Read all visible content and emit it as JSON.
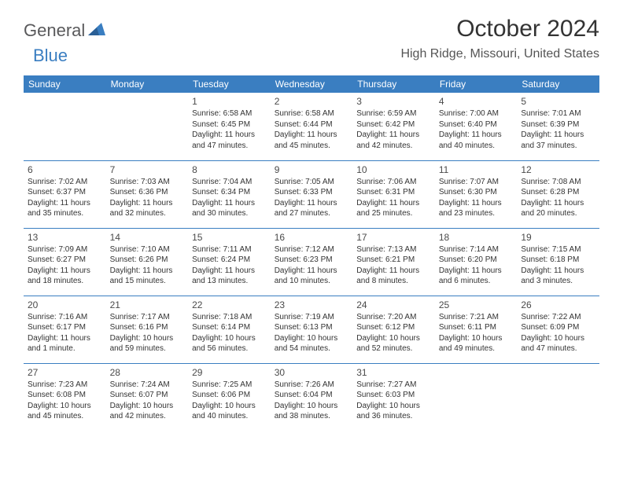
{
  "logo": {
    "text_general": "General",
    "text_blue": "Blue"
  },
  "title": "October 2024",
  "location": "High Ridge, Missouri, United States",
  "colors": {
    "header_bg": "#3a7ec1",
    "header_text": "#ffffff",
    "row_divider": "#3a7ec1",
    "body_text": "#333333",
    "logo_gray": "#59595b",
    "logo_blue": "#3a7ec1",
    "page_bg": "#ffffff"
  },
  "day_names": [
    "Sunday",
    "Monday",
    "Tuesday",
    "Wednesday",
    "Thursday",
    "Friday",
    "Saturday"
  ],
  "weeks": [
    [
      null,
      null,
      {
        "d": "1",
        "sr": "Sunrise: 6:58 AM",
        "ss": "Sunset: 6:45 PM",
        "dl1": "Daylight: 11 hours",
        "dl2": "and 47 minutes."
      },
      {
        "d": "2",
        "sr": "Sunrise: 6:58 AM",
        "ss": "Sunset: 6:44 PM",
        "dl1": "Daylight: 11 hours",
        "dl2": "and 45 minutes."
      },
      {
        "d": "3",
        "sr": "Sunrise: 6:59 AM",
        "ss": "Sunset: 6:42 PM",
        "dl1": "Daylight: 11 hours",
        "dl2": "and 42 minutes."
      },
      {
        "d": "4",
        "sr": "Sunrise: 7:00 AM",
        "ss": "Sunset: 6:40 PM",
        "dl1": "Daylight: 11 hours",
        "dl2": "and 40 minutes."
      },
      {
        "d": "5",
        "sr": "Sunrise: 7:01 AM",
        "ss": "Sunset: 6:39 PM",
        "dl1": "Daylight: 11 hours",
        "dl2": "and 37 minutes."
      }
    ],
    [
      {
        "d": "6",
        "sr": "Sunrise: 7:02 AM",
        "ss": "Sunset: 6:37 PM",
        "dl1": "Daylight: 11 hours",
        "dl2": "and 35 minutes."
      },
      {
        "d": "7",
        "sr": "Sunrise: 7:03 AM",
        "ss": "Sunset: 6:36 PM",
        "dl1": "Daylight: 11 hours",
        "dl2": "and 32 minutes."
      },
      {
        "d": "8",
        "sr": "Sunrise: 7:04 AM",
        "ss": "Sunset: 6:34 PM",
        "dl1": "Daylight: 11 hours",
        "dl2": "and 30 minutes."
      },
      {
        "d": "9",
        "sr": "Sunrise: 7:05 AM",
        "ss": "Sunset: 6:33 PM",
        "dl1": "Daylight: 11 hours",
        "dl2": "and 27 minutes."
      },
      {
        "d": "10",
        "sr": "Sunrise: 7:06 AM",
        "ss": "Sunset: 6:31 PM",
        "dl1": "Daylight: 11 hours",
        "dl2": "and 25 minutes."
      },
      {
        "d": "11",
        "sr": "Sunrise: 7:07 AM",
        "ss": "Sunset: 6:30 PM",
        "dl1": "Daylight: 11 hours",
        "dl2": "and 23 minutes."
      },
      {
        "d": "12",
        "sr": "Sunrise: 7:08 AM",
        "ss": "Sunset: 6:28 PM",
        "dl1": "Daylight: 11 hours",
        "dl2": "and 20 minutes."
      }
    ],
    [
      {
        "d": "13",
        "sr": "Sunrise: 7:09 AM",
        "ss": "Sunset: 6:27 PM",
        "dl1": "Daylight: 11 hours",
        "dl2": "and 18 minutes."
      },
      {
        "d": "14",
        "sr": "Sunrise: 7:10 AM",
        "ss": "Sunset: 6:26 PM",
        "dl1": "Daylight: 11 hours",
        "dl2": "and 15 minutes."
      },
      {
        "d": "15",
        "sr": "Sunrise: 7:11 AM",
        "ss": "Sunset: 6:24 PM",
        "dl1": "Daylight: 11 hours",
        "dl2": "and 13 minutes."
      },
      {
        "d": "16",
        "sr": "Sunrise: 7:12 AM",
        "ss": "Sunset: 6:23 PM",
        "dl1": "Daylight: 11 hours",
        "dl2": "and 10 minutes."
      },
      {
        "d": "17",
        "sr": "Sunrise: 7:13 AM",
        "ss": "Sunset: 6:21 PM",
        "dl1": "Daylight: 11 hours",
        "dl2": "and 8 minutes."
      },
      {
        "d": "18",
        "sr": "Sunrise: 7:14 AM",
        "ss": "Sunset: 6:20 PM",
        "dl1": "Daylight: 11 hours",
        "dl2": "and 6 minutes."
      },
      {
        "d": "19",
        "sr": "Sunrise: 7:15 AM",
        "ss": "Sunset: 6:18 PM",
        "dl1": "Daylight: 11 hours",
        "dl2": "and 3 minutes."
      }
    ],
    [
      {
        "d": "20",
        "sr": "Sunrise: 7:16 AM",
        "ss": "Sunset: 6:17 PM",
        "dl1": "Daylight: 11 hours",
        "dl2": "and 1 minute."
      },
      {
        "d": "21",
        "sr": "Sunrise: 7:17 AM",
        "ss": "Sunset: 6:16 PM",
        "dl1": "Daylight: 10 hours",
        "dl2": "and 59 minutes."
      },
      {
        "d": "22",
        "sr": "Sunrise: 7:18 AM",
        "ss": "Sunset: 6:14 PM",
        "dl1": "Daylight: 10 hours",
        "dl2": "and 56 minutes."
      },
      {
        "d": "23",
        "sr": "Sunrise: 7:19 AM",
        "ss": "Sunset: 6:13 PM",
        "dl1": "Daylight: 10 hours",
        "dl2": "and 54 minutes."
      },
      {
        "d": "24",
        "sr": "Sunrise: 7:20 AM",
        "ss": "Sunset: 6:12 PM",
        "dl1": "Daylight: 10 hours",
        "dl2": "and 52 minutes."
      },
      {
        "d": "25",
        "sr": "Sunrise: 7:21 AM",
        "ss": "Sunset: 6:11 PM",
        "dl1": "Daylight: 10 hours",
        "dl2": "and 49 minutes."
      },
      {
        "d": "26",
        "sr": "Sunrise: 7:22 AM",
        "ss": "Sunset: 6:09 PM",
        "dl1": "Daylight: 10 hours",
        "dl2": "and 47 minutes."
      }
    ],
    [
      {
        "d": "27",
        "sr": "Sunrise: 7:23 AM",
        "ss": "Sunset: 6:08 PM",
        "dl1": "Daylight: 10 hours",
        "dl2": "and 45 minutes."
      },
      {
        "d": "28",
        "sr": "Sunrise: 7:24 AM",
        "ss": "Sunset: 6:07 PM",
        "dl1": "Daylight: 10 hours",
        "dl2": "and 42 minutes."
      },
      {
        "d": "29",
        "sr": "Sunrise: 7:25 AM",
        "ss": "Sunset: 6:06 PM",
        "dl1": "Daylight: 10 hours",
        "dl2": "and 40 minutes."
      },
      {
        "d": "30",
        "sr": "Sunrise: 7:26 AM",
        "ss": "Sunset: 6:04 PM",
        "dl1": "Daylight: 10 hours",
        "dl2": "and 38 minutes."
      },
      {
        "d": "31",
        "sr": "Sunrise: 7:27 AM",
        "ss": "Sunset: 6:03 PM",
        "dl1": "Daylight: 10 hours",
        "dl2": "and 36 minutes."
      },
      null,
      null
    ]
  ]
}
